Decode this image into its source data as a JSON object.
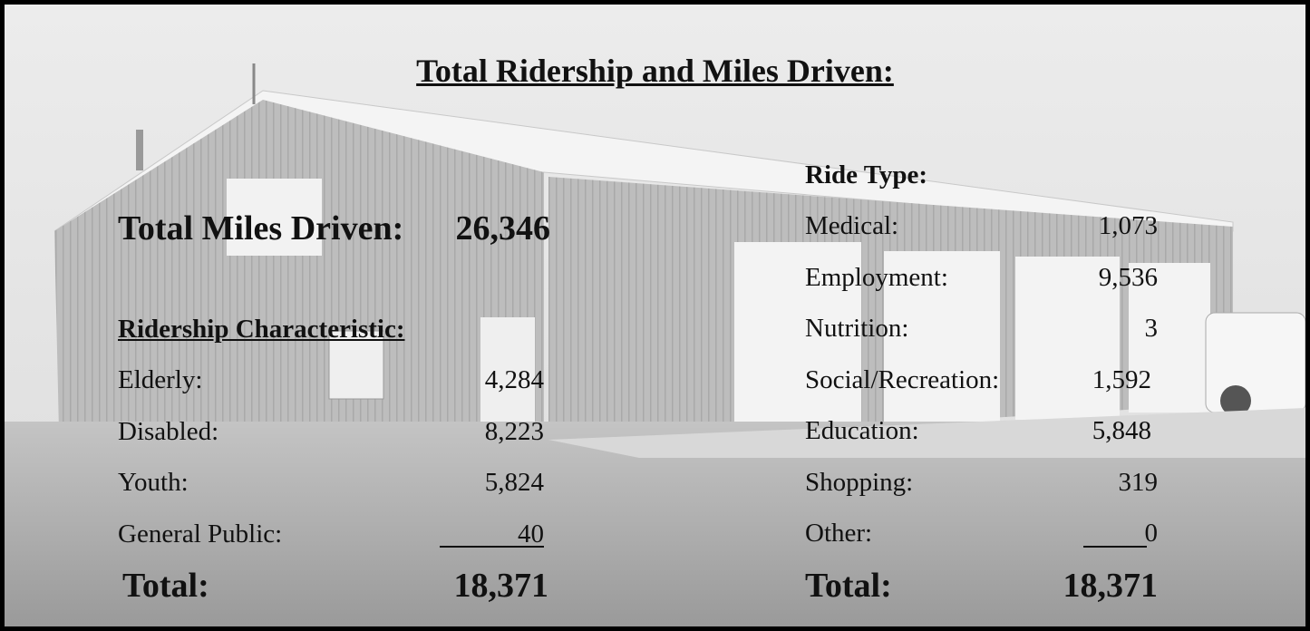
{
  "title": "Total Ridership and Miles Driven:",
  "miles": {
    "label": "Total Miles Driven:",
    "value": "26,346"
  },
  "ridership": {
    "heading": "Ridership Characteristic:",
    "rows": [
      [
        "Elderly:",
        "4,284"
      ],
      [
        "Disabled:",
        "8,223"
      ],
      [
        "Youth:",
        "5,824"
      ],
      [
        "General Public:",
        "40"
      ]
    ],
    "total": {
      "label": "Total:",
      "value": "18,371"
    }
  },
  "ride_type": {
    "heading": "Ride Type:",
    "rows": [
      [
        "Medical:",
        "1,073"
      ],
      [
        "Employment:",
        "9,536"
      ],
      [
        "Nutrition:",
        "3"
      ],
      [
        "Social/Recreation:",
        "1,592"
      ],
      [
        "Education:",
        "5,848"
      ],
      [
        "Shopping:",
        "319"
      ],
      [
        "Other:",
        "0"
      ]
    ],
    "total": {
      "label": "Total:",
      "value": "18,371"
    }
  }
}
